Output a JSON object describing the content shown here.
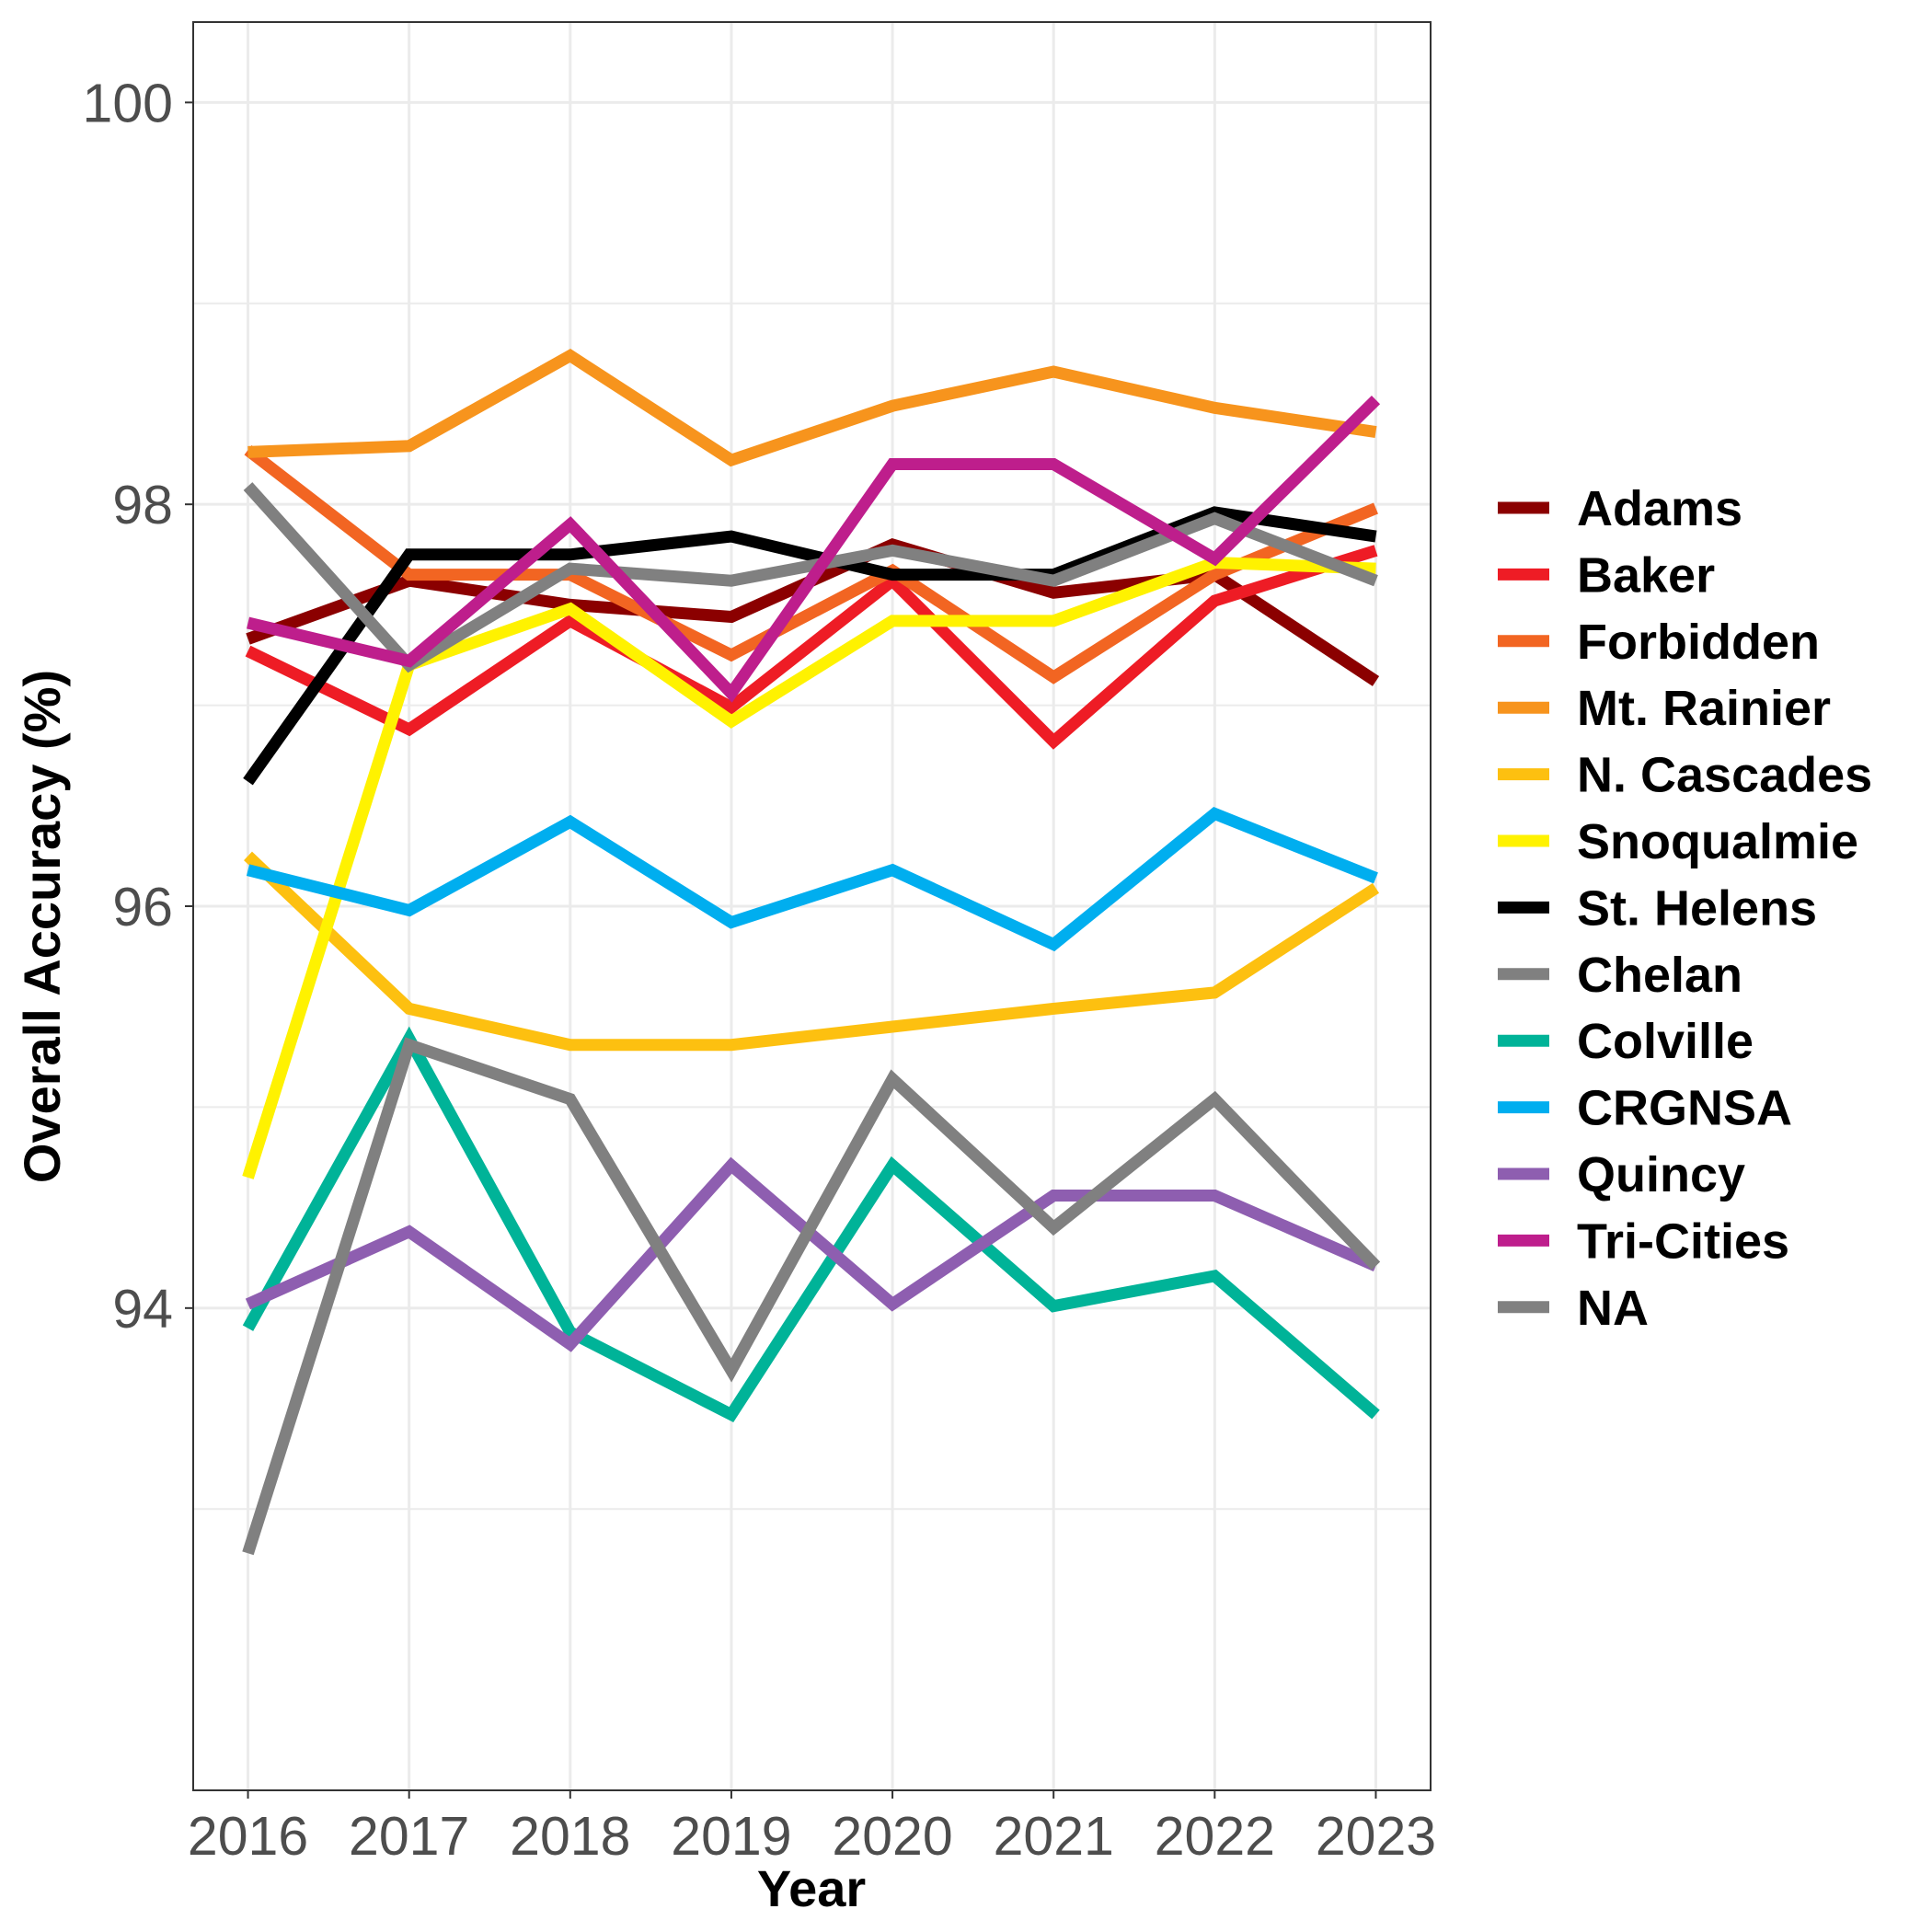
{
  "chart_data": {
    "type": "line",
    "title": "",
    "xlabel": "Year",
    "ylabel": "Overall Accuracy (%)",
    "x": [
      2016,
      2017,
      2018,
      2019,
      2020,
      2021,
      2022,
      2023
    ],
    "x_tick_labels": [
      "2016",
      "2017",
      "2018",
      "2019",
      "2020",
      "2021",
      "2022",
      "2023"
    ],
    "y_ticks": [
      94,
      96,
      98,
      100
    ],
    "y_tick_labels": [
      "94",
      "96",
      "98",
      "100"
    ],
    "xlim": [
      2015.66,
      2023.34
    ],
    "ylim": [
      91.6,
      100.4
    ],
    "grid": true,
    "legend_position": "right",
    "series": [
      {
        "name": "Adams",
        "color": "#8B0000",
        "values": [
          97.33,
          97.62,
          97.5,
          97.44,
          97.8,
          97.56,
          97.65,
          97.12
        ]
      },
      {
        "name": "Baker",
        "color": "#EE1C25",
        "values": [
          97.27,
          96.88,
          97.42,
          96.99,
          97.62,
          96.82,
          97.52,
          97.77
        ]
      },
      {
        "name": "Forbidden",
        "color": "#F26522",
        "values": [
          98.27,
          97.65,
          97.65,
          97.25,
          97.67,
          97.14,
          97.65,
          97.98
        ]
      },
      {
        "name": "Mt. Rainier",
        "color": "#F7941D",
        "values": [
          98.26,
          98.29,
          98.74,
          98.22,
          98.49,
          98.66,
          98.48,
          98.36
        ]
      },
      {
        "name": "N. Cascades",
        "color": "#FDC010",
        "values": [
          96.25,
          95.49,
          95.31,
          95.31,
          95.4,
          95.49,
          95.57,
          96.09
        ]
      },
      {
        "name": "Snoqualmie",
        "color": "#FFF200",
        "values": [
          94.65,
          97.2,
          97.48,
          96.92,
          97.42,
          97.42,
          97.71,
          97.68
        ]
      },
      {
        "name": "St. Helens",
        "color": "#000000",
        "values": [
          96.62,
          97.75,
          97.75,
          97.84,
          97.65,
          97.65,
          97.96,
          97.84
        ]
      },
      {
        "name": "Chelan",
        "color": "#808080",
        "values": [
          98.09,
          97.2,
          97.68,
          97.62,
          97.77,
          97.62,
          97.93,
          97.62
        ]
      },
      {
        "name": "Colville",
        "color": "#00B398",
        "values": [
          93.9,
          95.34,
          93.88,
          93.47,
          94.71,
          94.01,
          94.16,
          93.47
        ]
      },
      {
        "name": "CRGNSA",
        "color": "#00AEEF",
        "values": [
          96.18,
          95.98,
          96.42,
          95.92,
          96.18,
          95.81,
          96.46,
          96.14
        ]
      },
      {
        "name": "Quincy",
        "color": "#8E5EB0",
        "values": [
          94.02,
          94.38,
          93.82,
          94.71,
          94.02,
          94.56,
          94.56,
          94.21
        ]
      },
      {
        "name": "Tri-Cities",
        "color": "#BE1E8C",
        "values": [
          97.41,
          97.22,
          97.9,
          97.06,
          98.2,
          98.2,
          97.73,
          98.52
        ]
      },
      {
        "name": "NA",
        "color": "#808080",
        "values": [
          92.78,
          95.31,
          95.04,
          93.69,
          95.14,
          94.4,
          95.04,
          94.21
        ]
      }
    ]
  }
}
